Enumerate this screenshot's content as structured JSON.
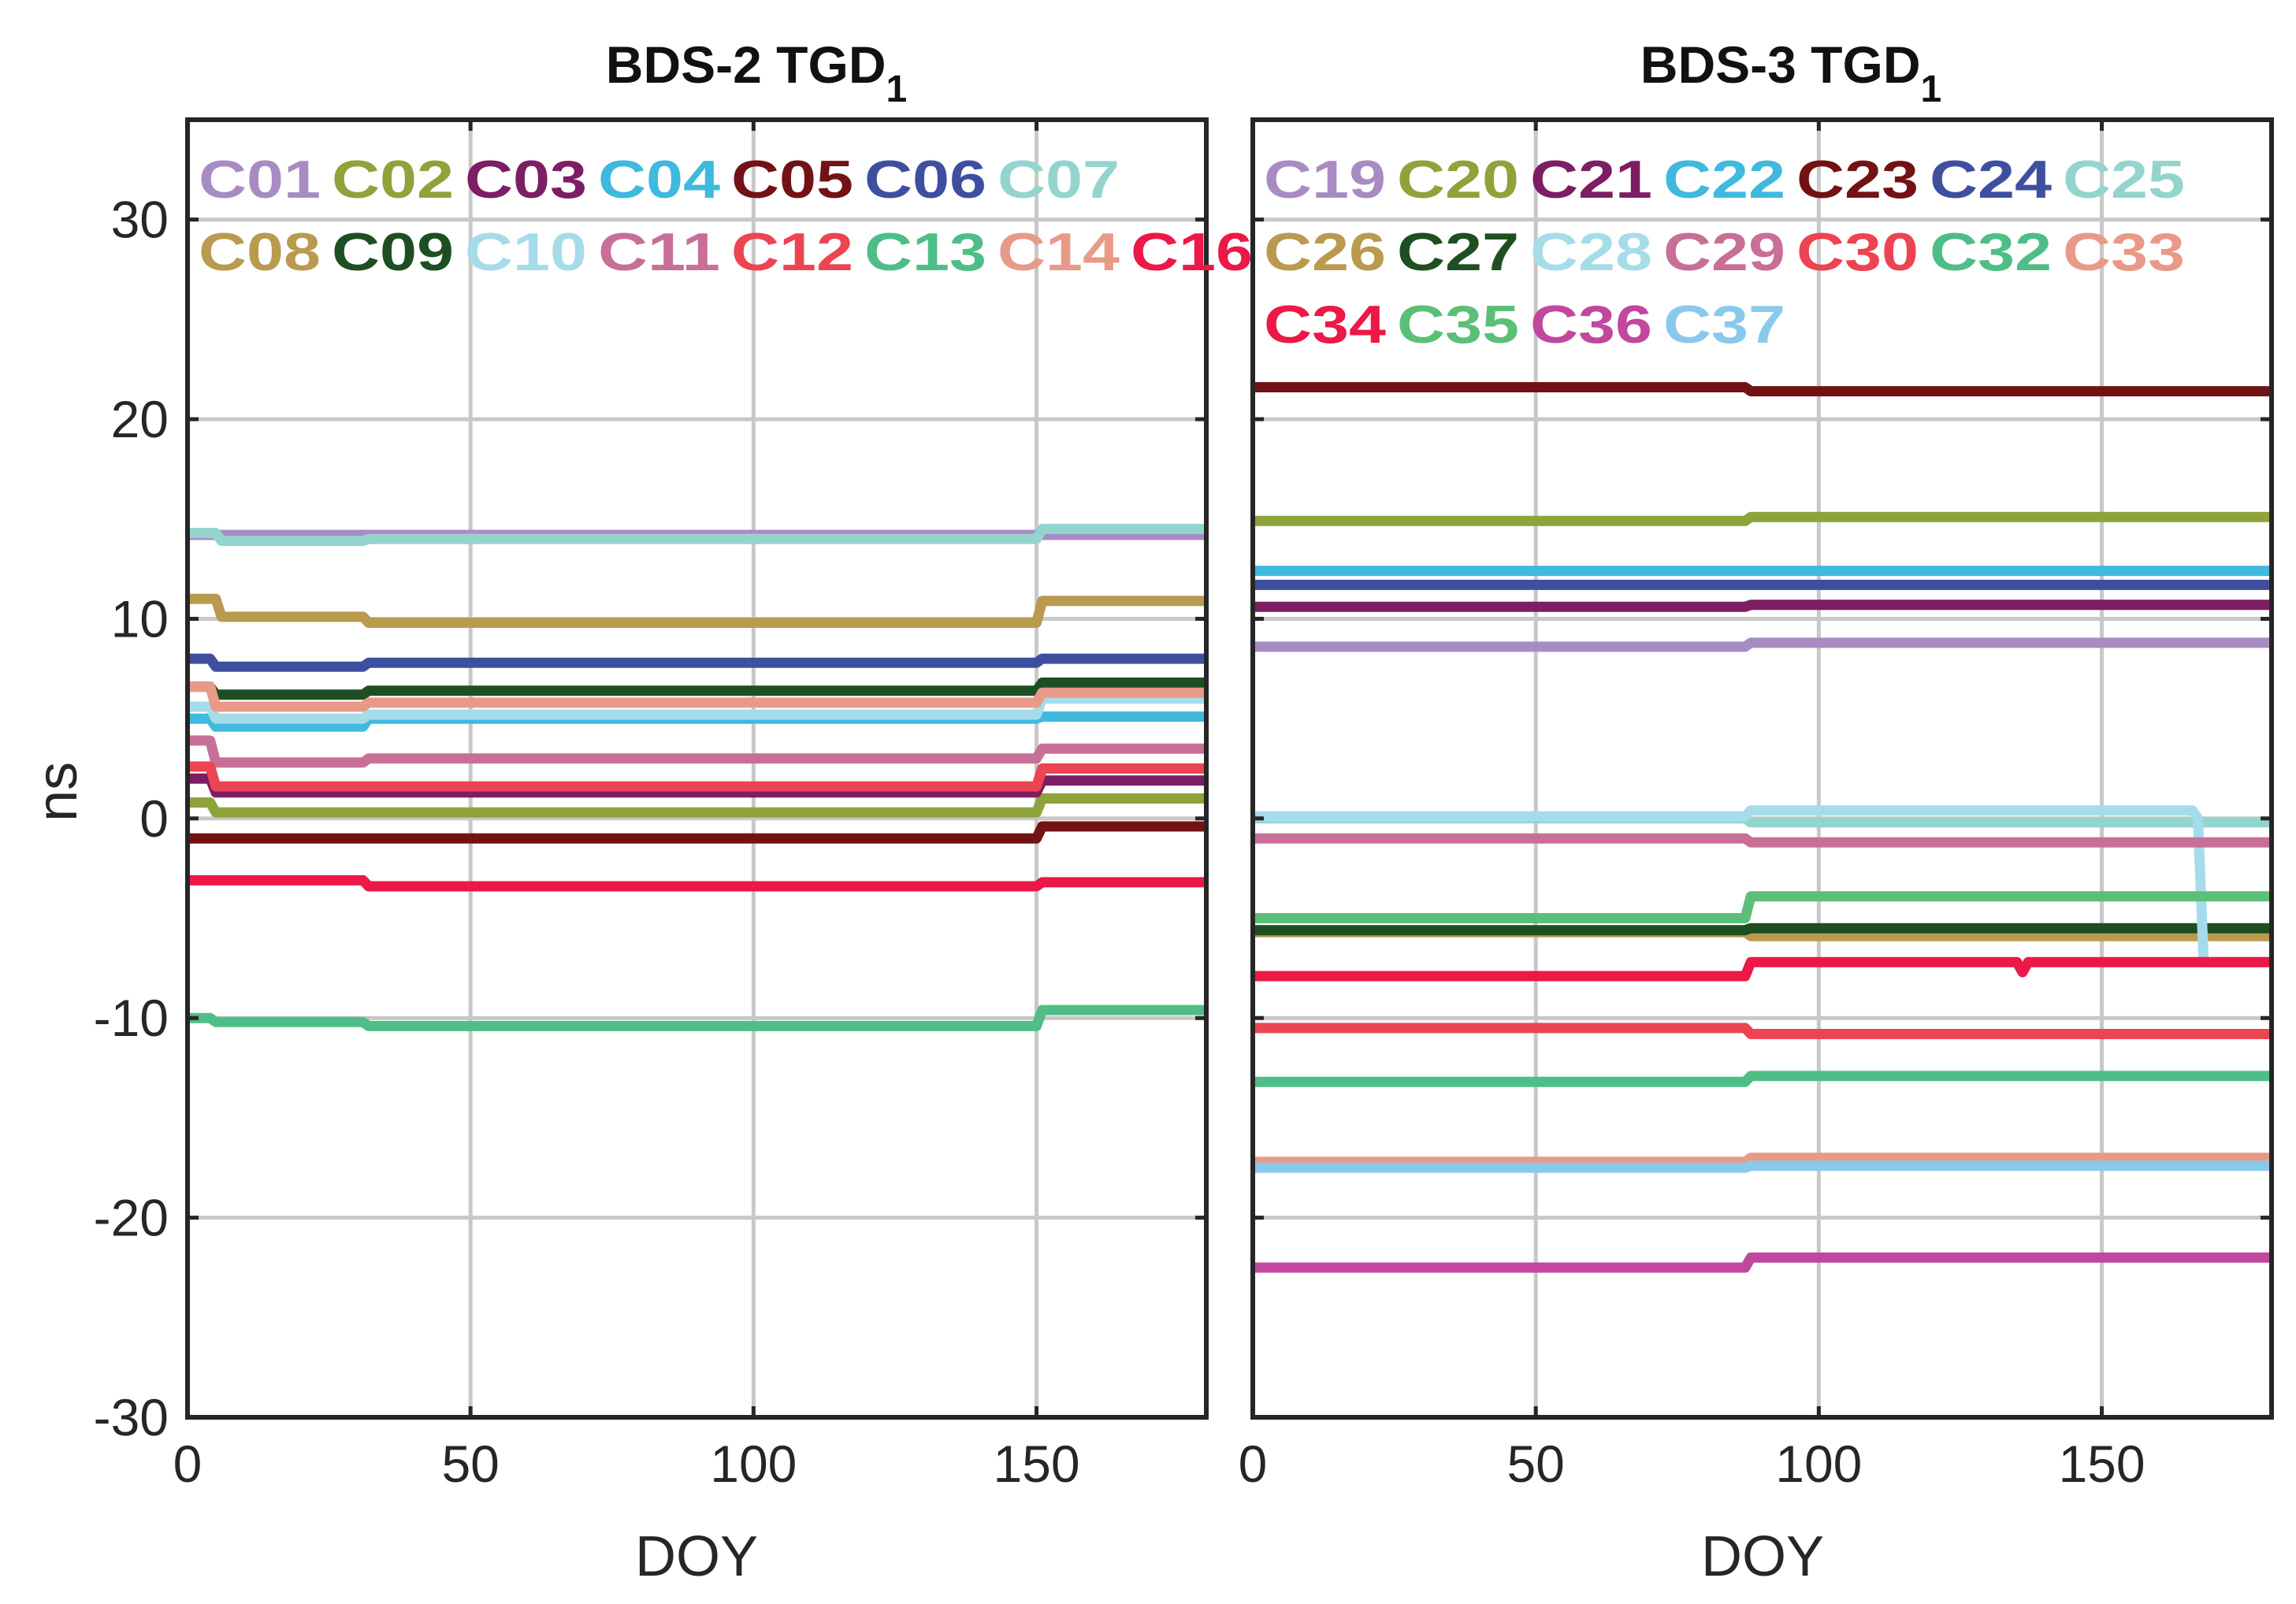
{
  "axis": {
    "xlabel": "DOY",
    "ylabel": "ns",
    "xlim": [
      0,
      180
    ],
    "ylim": [
      -30,
      35
    ],
    "xticks": [
      0,
      50,
      100,
      150
    ],
    "yticks": [
      -30,
      -20,
      -10,
      0,
      10,
      20,
      30
    ],
    "grid": true
  },
  "chart_data": [
    {
      "type": "line",
      "title": "BDS-2 TGD",
      "title_sub": "1",
      "xlabel": "DOY",
      "ylabel": "ns",
      "xlim": [
        0,
        180
      ],
      "ylim": [
        -30,
        35
      ],
      "legend_rows": [
        [
          "C01",
          "C02",
          "C03",
          "C04",
          "C05",
          "C06",
          "C07"
        ],
        [
          "C08",
          "C09",
          "C10",
          "C11",
          "C12",
          "C13",
          "C14",
          "C16"
        ]
      ],
      "series": [
        {
          "name": "C01",
          "color": "#a98bc4",
          "x": [
            0,
            180
          ],
          "y": [
            14.2,
            14.2
          ]
        },
        {
          "name": "C02",
          "color": "#8ea33a",
          "x": [
            0,
            4,
            5,
            150,
            151,
            180
          ],
          "y": [
            0.8,
            0.8,
            0.3,
            0.3,
            1.0,
            1.0
          ]
        },
        {
          "name": "C03",
          "color": "#7d1d63",
          "x": [
            0,
            4,
            5,
            150,
            151,
            180
          ],
          "y": [
            2.0,
            2.0,
            1.3,
            1.3,
            1.9,
            1.9
          ]
        },
        {
          "name": "C04",
          "color": "#3fb9dd",
          "x": [
            0,
            4,
            5,
            31,
            32,
            150,
            151,
            180
          ],
          "y": [
            5.0,
            5.0,
            4.6,
            4.6,
            5.0,
            5.0,
            5.1,
            5.1
          ]
        },
        {
          "name": "C05",
          "color": "#731214",
          "x": [
            0,
            150,
            151,
            180
          ],
          "y": [
            -1.0,
            -1.0,
            -0.4,
            -0.4
          ]
        },
        {
          "name": "C06",
          "color": "#3f4fa0",
          "x": [
            0,
            4,
            5,
            31,
            32,
            150,
            151,
            180
          ],
          "y": [
            8.0,
            8.0,
            7.6,
            7.6,
            7.8,
            7.8,
            8.0,
            8.0
          ]
        },
        {
          "name": "C07",
          "color": "#94d4cf",
          "x": [
            0,
            5,
            6,
            31,
            32,
            150,
            151,
            180
          ],
          "y": [
            14.3,
            14.3,
            13.9,
            13.9,
            14.0,
            14.0,
            14.5,
            14.5
          ]
        },
        {
          "name": "C08",
          "color": "#b99a4f",
          "x": [
            0,
            5,
            6,
            31,
            32,
            150,
            151,
            180
          ],
          "y": [
            11.0,
            11.0,
            10.1,
            10.1,
            9.8,
            9.8,
            10.9,
            10.9
          ]
        },
        {
          "name": "C09",
          "color": "#1e4f22",
          "x": [
            0,
            4,
            5,
            31,
            32,
            150,
            151,
            180
          ],
          "y": [
            6.6,
            6.6,
            6.2,
            6.2,
            6.4,
            6.4,
            6.8,
            6.8
          ]
        },
        {
          "name": "C10",
          "color": "#a6dcea",
          "x": [
            0,
            4,
            5,
            31,
            32,
            150,
            151,
            180
          ],
          "y": [
            5.6,
            5.6,
            5.0,
            5.0,
            5.2,
            5.2,
            6.0,
            6.0
          ]
        },
        {
          "name": "C11",
          "color": "#c86f98",
          "x": [
            0,
            4,
            5,
            31,
            32,
            150,
            151,
            180
          ],
          "y": [
            3.9,
            3.9,
            2.8,
            2.8,
            3.0,
            3.0,
            3.5,
            3.5
          ]
        },
        {
          "name": "C12",
          "color": "#ec4452",
          "x": [
            0,
            4,
            5,
            150,
            151,
            180
          ],
          "y": [
            2.6,
            2.6,
            1.6,
            1.6,
            2.5,
            2.5
          ]
        },
        {
          "name": "C13",
          "color": "#4fbe86",
          "x": [
            0,
            4,
            5,
            31,
            32,
            150,
            151,
            180
          ],
          "y": [
            -10.0,
            -10.0,
            -10.2,
            -10.2,
            -10.4,
            -10.4,
            -9.6,
            -9.6
          ]
        },
        {
          "name": "C14",
          "color": "#e89a88",
          "x": [
            0,
            4,
            5,
            31,
            32,
            150,
            151,
            180
          ],
          "y": [
            6.6,
            6.6,
            5.6,
            5.6,
            5.8,
            5.8,
            6.3,
            6.3
          ]
        },
        {
          "name": "C16",
          "color": "#ec1848",
          "x": [
            0,
            31,
            32,
            150,
            151,
            180
          ],
          "y": [
            -3.1,
            -3.1,
            -3.4,
            -3.4,
            -3.2,
            -3.2
          ]
        }
      ]
    },
    {
      "type": "line",
      "title": "BDS-3 TGD",
      "title_sub": "1",
      "xlabel": "DOY",
      "ylabel": "",
      "xlim": [
        0,
        180
      ],
      "ylim": [
        -30,
        35
      ],
      "legend_rows": [
        [
          "C19",
          "C20",
          "C21",
          "C22",
          "C23",
          "C24",
          "C25"
        ],
        [
          "C26",
          "C27",
          "C28",
          "C29",
          "C30",
          "C32",
          "C33"
        ],
        [
          "C34",
          "C35",
          "C36",
          "C37"
        ]
      ],
      "series": [
        {
          "name": "C19",
          "color": "#a98bc4",
          "x": [
            0,
            87,
            88,
            180
          ],
          "y": [
            8.6,
            8.6,
            8.8,
            8.8
          ]
        },
        {
          "name": "C20",
          "color": "#8ea33a",
          "x": [
            0,
            87,
            88,
            180
          ],
          "y": [
            14.9,
            14.9,
            15.1,
            15.1
          ]
        },
        {
          "name": "C21",
          "color": "#7d1d63",
          "x": [
            0,
            87,
            88,
            180
          ],
          "y": [
            10.6,
            10.6,
            10.7,
            10.7
          ]
        },
        {
          "name": "C22",
          "color": "#3fb9dd",
          "x": [
            0,
            180
          ],
          "y": [
            12.4,
            12.4
          ]
        },
        {
          "name": "C23",
          "color": "#731214",
          "x": [
            0,
            87,
            88,
            180
          ],
          "y": [
            21.6,
            21.6,
            21.4,
            21.4
          ]
        },
        {
          "name": "C24",
          "color": "#3f4fa0",
          "x": [
            0,
            180
          ],
          "y": [
            11.7,
            11.7
          ]
        },
        {
          "name": "C25",
          "color": "#94d4cf",
          "x": [
            0,
            87,
            88,
            180
          ],
          "y": [
            0.0,
            0.0,
            -0.2,
            -0.2
          ]
        },
        {
          "name": "C26",
          "color": "#b99a4f",
          "x": [
            0,
            87,
            88,
            180
          ],
          "y": [
            -5.7,
            -5.7,
            -5.9,
            -5.9
          ]
        },
        {
          "name": "C27",
          "color": "#1e4f22",
          "x": [
            0,
            87,
            88,
            180
          ],
          "y": [
            -5.6,
            -5.6,
            -5.5,
            -5.5
          ]
        },
        {
          "name": "C28",
          "color": "#a6dcea",
          "x": [
            0,
            87,
            88,
            166,
            167,
            168,
            180
          ],
          "y": [
            0.1,
            0.1,
            0.4,
            0.4,
            0.0,
            -7.2,
            -7.2
          ]
        },
        {
          "name": "C29",
          "color": "#c86f98",
          "x": [
            0,
            87,
            88,
            180
          ],
          "y": [
            -1.0,
            -1.0,
            -1.2,
            -1.2
          ]
        },
        {
          "name": "C30",
          "color": "#ec4452",
          "x": [
            0,
            87,
            88,
            180
          ],
          "y": [
            -10.5,
            -10.5,
            -10.8,
            -10.8
          ]
        },
        {
          "name": "C32",
          "color": "#4fbe86",
          "x": [
            0,
            87,
            88,
            180
          ],
          "y": [
            -13.2,
            -13.2,
            -12.9,
            -12.9
          ]
        },
        {
          "name": "C33",
          "color": "#e89a88",
          "x": [
            0,
            87,
            88,
            180
          ],
          "y": [
            -17.2,
            -17.2,
            -17.0,
            -17.0
          ]
        },
        {
          "name": "C34",
          "color": "#ec1848",
          "x": [
            0,
            87,
            88,
            135,
            136,
            137,
            180
          ],
          "y": [
            -7.9,
            -7.9,
            -7.2,
            -7.2,
            -7.7,
            -7.2,
            -7.2
          ]
        },
        {
          "name": "C35",
          "color": "#5cbf78",
          "x": [
            0,
            87,
            88,
            180
          ],
          "y": [
            -5.0,
            -5.0,
            -3.9,
            -3.9
          ]
        },
        {
          "name": "C36",
          "color": "#c2479e",
          "x": [
            0,
            87,
            88,
            180
          ],
          "y": [
            -22.5,
            -22.5,
            -22.0,
            -22.0
          ]
        },
        {
          "name": "C37",
          "color": "#89c9ec",
          "x": [
            0,
            87,
            88,
            180
          ],
          "y": [
            -17.5,
            -17.5,
            -17.4,
            -17.4
          ]
        }
      ]
    }
  ]
}
